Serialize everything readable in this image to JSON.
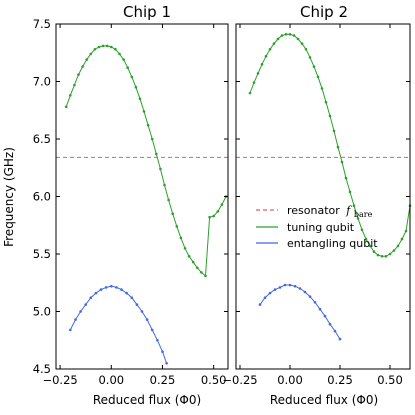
{
  "chart_data": [
    {
      "type": "line",
      "title": "Chip 1",
      "xlabel": "Reduced flux (Φ0)",
      "ylabel": "Frequency (GHz)",
      "xlim": [
        -0.27,
        0.57
      ],
      "ylim": [
        4.5,
        7.5
      ],
      "xticks": [
        "−0.25",
        "0.00",
        "0.25",
        "0.50"
      ],
      "yticks": [
        "4.5",
        "5.0",
        "5.5",
        "6.0",
        "6.5",
        "7.0",
        "7.5"
      ],
      "grid": false,
      "resonator_f_bare": 6.34,
      "series": [
        {
          "name": "tuning qubit",
          "color": "#2ca02c",
          "style": "solid",
          "x": [
            -0.22,
            -0.2,
            -0.18,
            -0.16,
            -0.14,
            -0.12,
            -0.1,
            -0.08,
            -0.06,
            -0.04,
            -0.02,
            0.0,
            0.02,
            0.04,
            0.06,
            0.08,
            0.1,
            0.12,
            0.14,
            0.16,
            0.18,
            0.2,
            0.22,
            0.24,
            0.26,
            0.28,
            0.3,
            0.32,
            0.34,
            0.36,
            0.38,
            0.4,
            0.42,
            0.44,
            0.46,
            0.48,
            0.5,
            0.52,
            0.54,
            0.56
          ],
          "y": [
            6.78,
            6.88,
            6.97,
            7.06,
            7.13,
            7.19,
            7.24,
            7.28,
            7.3,
            7.31,
            7.31,
            7.3,
            7.28,
            7.24,
            7.19,
            7.12,
            7.04,
            6.95,
            6.85,
            6.74,
            6.62,
            6.5,
            6.37,
            6.24,
            6.1,
            5.97,
            5.85,
            5.74,
            5.64,
            5.55,
            5.48,
            5.43,
            5.38,
            5.34,
            5.31,
            5.82,
            5.83,
            5.87,
            5.93,
            6.0
          ]
        },
        {
          "name": "entangling qubit",
          "color": "#4169e1",
          "style": "solid",
          "x": [
            -0.2,
            -0.175,
            -0.15,
            -0.125,
            -0.1,
            -0.075,
            -0.05,
            -0.025,
            0.0,
            0.025,
            0.05,
            0.075,
            0.1,
            0.125,
            0.15,
            0.175,
            0.2,
            0.225,
            0.25,
            0.27
          ],
          "y": [
            4.84,
            4.93,
            5.0,
            5.06,
            5.12,
            5.16,
            5.19,
            5.21,
            5.22,
            5.21,
            5.19,
            5.16,
            5.12,
            5.06,
            5.0,
            4.93,
            4.84,
            4.75,
            4.65,
            4.55
          ]
        }
      ]
    },
    {
      "type": "line",
      "title": "Chip 2",
      "xlabel": "Reduced flux (Φ0)",
      "xlim": [
        -0.27,
        0.6
      ],
      "ylim": [
        4.5,
        7.5
      ],
      "xticks": [
        "−0.25",
        "0.00",
        "0.25",
        "0.50"
      ],
      "grid": false,
      "resonator_f_bare": 6.34,
      "legend": {
        "placement": "center-right",
        "entries": [
          "resonator f_bare",
          "tuning qubit",
          "entangling qubit"
        ]
      },
      "series": [
        {
          "name": "tuning qubit",
          "color": "#2ca02c",
          "style": "solid",
          "x": [
            -0.2,
            -0.18,
            -0.16,
            -0.14,
            -0.12,
            -0.1,
            -0.08,
            -0.06,
            -0.04,
            -0.02,
            0.0,
            0.02,
            0.04,
            0.06,
            0.08,
            0.1,
            0.12,
            0.14,
            0.16,
            0.18,
            0.2,
            0.22,
            0.24,
            0.26,
            0.28,
            0.3,
            0.32,
            0.34,
            0.36,
            0.38,
            0.4,
            0.42,
            0.44,
            0.46,
            0.48,
            0.5,
            0.52,
            0.54,
            0.56,
            0.58,
            0.6
          ],
          "y": [
            6.9,
            6.99,
            7.07,
            7.15,
            7.22,
            7.28,
            7.33,
            7.37,
            7.4,
            7.41,
            7.41,
            7.4,
            7.37,
            7.33,
            7.28,
            7.21,
            7.13,
            7.04,
            6.94,
            6.82,
            6.7,
            6.57,
            6.43,
            6.3,
            6.16,
            6.04,
            5.92,
            5.81,
            5.71,
            5.63,
            5.57,
            5.52,
            5.49,
            5.48,
            5.48,
            5.5,
            5.53,
            5.57,
            5.63,
            5.7,
            5.92
          ]
        },
        {
          "name": "entangling qubit",
          "color": "#4169e1",
          "style": "solid",
          "x": [
            -0.15,
            -0.125,
            -0.1,
            -0.075,
            -0.05,
            -0.025,
            0.0,
            0.025,
            0.05,
            0.075,
            0.1,
            0.125,
            0.15,
            0.175,
            0.2,
            0.225,
            0.25
          ],
          "y": [
            5.06,
            5.12,
            5.16,
            5.19,
            5.21,
            5.23,
            5.23,
            5.22,
            5.2,
            5.17,
            5.13,
            5.08,
            5.02,
            4.96,
            4.89,
            4.83,
            4.76
          ]
        }
      ]
    }
  ],
  "legend_labels": {
    "resonator": "resonator",
    "resonator_math": "f",
    "resonator_sub": "bare",
    "tuning": "tuning qubit",
    "entangling": "entangling qubit"
  },
  "colors": {
    "resonator": "#e06060",
    "tuning": "#2ca02c",
    "entangling": "#4169e1"
  }
}
